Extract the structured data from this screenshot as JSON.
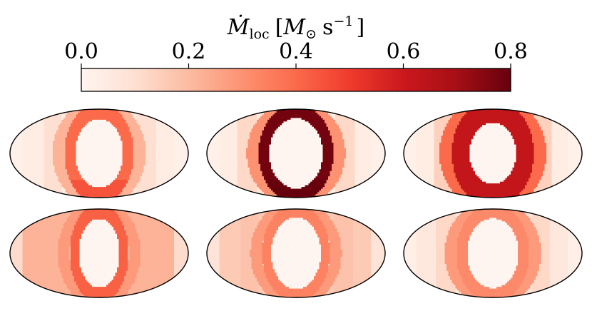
{
  "chart_data": {
    "type": "heatmap",
    "projection": "mollweide",
    "colormap": "Reds",
    "colorbar": {
      "label": "Ṁ",
      "label_subscript": "loc",
      "unit_open": "[",
      "unit_symbol": "M",
      "unit_symbol_subscript": "⊙",
      "unit_rest": "s",
      "unit_exponent": "−1",
      "unit_close": "]",
      "vmin": 0.0,
      "vmax": 0.8,
      "ticks": [
        0.0,
        0.2,
        0.4,
        0.6,
        0.8
      ],
      "tick_labels": [
        "0.0",
        "0.2",
        "0.4",
        "0.6",
        "0.8"
      ],
      "orientation": "horizontal",
      "location": "top"
    },
    "panels": [
      {
        "row": 1,
        "col": 1,
        "background": 0.04,
        "inner_core": 0.0,
        "core_half_width": 0.33,
        "ring_value": 0.4,
        "ring2_value": 0.22,
        "ring_width": 0.06,
        "side_value": 0.1,
        "bottom_value": 0.45
      },
      {
        "row": 1,
        "col": 2,
        "background": 0.04,
        "inner_core": 0.0,
        "core_half_width": 0.36,
        "ring_value": 0.78,
        "ring2_value": 0.3,
        "ring_width": 0.06,
        "side_value": 0.12,
        "bottom_value": 0.8
      },
      {
        "row": 1,
        "col": 3,
        "background": 0.04,
        "inner_core": 0.0,
        "core_half_width": 0.36,
        "ring_value": 0.62,
        "ring2_value": 0.4,
        "ring_width": 0.1,
        "side_value": 0.14,
        "bottom_value": 0.55
      },
      {
        "row": 2,
        "col": 1,
        "background": 0.22,
        "inner_core": 0.0,
        "core_half_width": 0.28,
        "ring_value": 0.42,
        "ring2_value": 0.28,
        "ring_width": 0.05,
        "side_value": 0.2,
        "bottom_value": 0.42
      },
      {
        "row": 2,
        "col": 2,
        "background": 0.16,
        "inner_core": 0.0,
        "core_half_width": 0.33,
        "ring_value": 0.34,
        "ring2_value": 0.28,
        "ring_width": 0.05,
        "side_value": 0.18,
        "bottom_value": 0.34
      },
      {
        "row": 2,
        "col": 3,
        "background": 0.06,
        "inner_core": 0.0,
        "core_half_width": 0.35,
        "ring_value": 0.32,
        "ring2_value": 0.28,
        "ring_width": 0.06,
        "side_value": 0.12,
        "bottom_value": 0.3
      }
    ]
  }
}
